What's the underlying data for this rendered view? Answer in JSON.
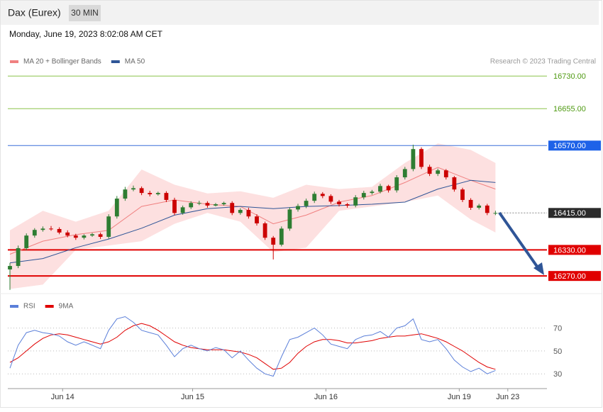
{
  "header": {
    "title": "Dax (Eurex)",
    "interval": "30 MIN",
    "timestamp": "Monday, June 19, 2023 8:02:08 AM CET"
  },
  "chart_data": [
    {
      "type": "candlestick",
      "copyright": "Research © 2023 Trading Central",
      "xlim": [
        -0.26,
        65.26
      ],
      "ylim": [
        16236,
        16750
      ],
      "up_color": "#2e7d32",
      "down_color": "#cc0000",
      "x": [
        0,
        1,
        2,
        3,
        4,
        5,
        6,
        7,
        8,
        9,
        10,
        11,
        12,
        13,
        14,
        15,
        16,
        17,
        18,
        19,
        20,
        21,
        22,
        23,
        24,
        25,
        26,
        27,
        28,
        29,
        30,
        31,
        32,
        33,
        34,
        35,
        36,
        37,
        38,
        39,
        40,
        41,
        42,
        43,
        44,
        45,
        46,
        47,
        48,
        49,
        50,
        51,
        52,
        53,
        54,
        55,
        56,
        57,
        58,
        59
      ],
      "open": [
        16285,
        16293,
        16334,
        16363,
        16376,
        16379,
        16378,
        16370,
        16363,
        16358,
        16363,
        16366,
        16360,
        16407,
        16448,
        16469,
        16472,
        16461,
        16458,
        16461,
        16445,
        16415,
        16428,
        16438,
        16438,
        16432,
        16435,
        16438,
        16415,
        16422,
        16407,
        16391,
        16358,
        16342,
        16379,
        16423,
        16431,
        16443,
        16459,
        16454,
        16441,
        16435,
        16432,
        16451,
        16461,
        16464,
        16477,
        16467,
        16497,
        16516,
        16562,
        16521,
        16505,
        16513,
        16497,
        16469,
        16445,
        16427,
        16432,
        16415
      ],
      "high": [
        16300,
        16340,
        16368,
        16380,
        16384,
        16385,
        16382,
        16375,
        16367,
        16366,
        16369,
        16370,
        16412,
        16454,
        16475,
        16478,
        16476,
        16466,
        16464,
        16465,
        16450,
        16432,
        16442,
        16443,
        16442,
        16438,
        16441,
        16442,
        16426,
        16427,
        16412,
        16395,
        16362,
        16384,
        16428,
        16436,
        16448,
        16464,
        16463,
        16458,
        16445,
        16438,
        16456,
        16466,
        16468,
        16482,
        16480,
        16502,
        16521,
        16572,
        16566,
        16526,
        16517,
        16516,
        16500,
        16473,
        16449,
        16436,
        16436,
        16420
      ],
      "low": [
        16238,
        16288,
        16329,
        16358,
        16372,
        16374,
        16366,
        16359,
        16353,
        16354,
        16360,
        16355,
        16356,
        16402,
        16443,
        16465,
        16456,
        16453,
        16455,
        16440,
        16410,
        16411,
        16424,
        16433,
        16427,
        16430,
        16432,
        16410,
        16411,
        16402,
        16386,
        16353,
        16308,
        16338,
        16374,
        16418,
        16426,
        16438,
        16449,
        16436,
        16430,
        16427,
        16428,
        16446,
        16457,
        16460,
        16462,
        16462,
        16492,
        16511,
        16516,
        16500,
        16500,
        16492,
        16464,
        16440,
        16422,
        16423,
        16410,
        16410
      ],
      "close": [
        16293,
        16334,
        16363,
        16376,
        16379,
        16378,
        16370,
        16363,
        16358,
        16363,
        16366,
        16360,
        16407,
        16448,
        16469,
        16472,
        16461,
        16458,
        16461,
        16445,
        16415,
        16428,
        16438,
        16438,
        16432,
        16435,
        16438,
        16415,
        16422,
        16407,
        16391,
        16358,
        16342,
        16379,
        16423,
        16431,
        16443,
        16459,
        16454,
        16441,
        16435,
        16432,
        16451,
        16461,
        16464,
        16477,
        16467,
        16497,
        16516,
        16562,
        16521,
        16505,
        16513,
        16497,
        16469,
        16445,
        16427,
        16432,
        16415,
        16415
      ],
      "series": [
        {
          "name": "MA 20 + Bollinger Bands",
          "color": "#f08080",
          "band_color": "#fde0e0",
          "x": [
            0,
            4,
            8,
            12,
            16,
            20,
            24,
            28,
            32,
            36,
            40,
            44,
            48,
            52,
            56,
            59
          ],
          "values": [
            16320,
            16350,
            16365,
            16375,
            16430,
            16445,
            16435,
            16430,
            16390,
            16410,
            16440,
            16455,
            16485,
            16520,
            16490,
            16470
          ],
          "upper": [
            16375,
            16420,
            16395,
            16420,
            16515,
            16480,
            16460,
            16465,
            16450,
            16480,
            16470,
            16475,
            16530,
            16575,
            16560,
            16530
          ],
          "lower": [
            16240,
            16250,
            16330,
            16340,
            16350,
            16390,
            16415,
            16395,
            16325,
            16335,
            16420,
            16430,
            16440,
            16455,
            16400,
            16370
          ]
        },
        {
          "name": "MA 50",
          "color": "#2f5597",
          "x": [
            0,
            4,
            8,
            12,
            16,
            20,
            24,
            28,
            32,
            36,
            40,
            44,
            48,
            52,
            56,
            59
          ],
          "values": [
            16300,
            16310,
            16335,
            16355,
            16380,
            16410,
            16425,
            16430,
            16425,
            16430,
            16432,
            16435,
            16440,
            16470,
            16490,
            16485
          ]
        }
      ],
      "levels": [
        {
          "value": 16730,
          "label": "16730.00",
          "color": "#8bc34a",
          "label_color": "#4f9a12",
          "boxed": false,
          "dashed": false
        },
        {
          "value": 16655,
          "label": "16655.00",
          "color": "#8bc34a",
          "label_color": "#4f9a12",
          "boxed": false,
          "dashed": false
        },
        {
          "value": 16570,
          "label": "16570.00",
          "color": "#3a6fd8",
          "label_color": "#1e62e8",
          "boxed": true,
          "dashed": false
        },
        {
          "value": 16415,
          "label": "16415.00",
          "color": "#888888",
          "label_color": "#2b2b2b",
          "boxed": true,
          "dashed": true
        },
        {
          "value": 16330,
          "label": "16330.00",
          "color": "#e00000",
          "label_color": "#e00000",
          "boxed": true,
          "dashed": false
        },
        {
          "value": 16270,
          "label": "16270.00",
          "color": "#e00000",
          "label_color": "#e00000",
          "boxed": true,
          "dashed": false
        }
      ]
    },
    {
      "type": "line",
      "xlim": [
        -0.26,
        65.26
      ],
      "ylim": [
        19,
        84
      ],
      "yticks": [
        30,
        50,
        70
      ],
      "xticks": [
        {
          "value": 6.4,
          "label": "Jun 14"
        },
        {
          "value": 22.2,
          "label": "Jun 15"
        },
        {
          "value": 38.4,
          "label": "Jun 16"
        },
        {
          "value": 54.6,
          "label": "Jun 19"
        },
        {
          "value": 60.5,
          "label": "Jun 23"
        }
      ],
      "x": [
        0,
        1,
        2,
        3,
        4,
        5,
        6,
        7,
        8,
        9,
        10,
        11,
        12,
        13,
        14,
        15,
        16,
        17,
        18,
        19,
        20,
        21,
        22,
        23,
        24,
        25,
        26,
        27,
        28,
        29,
        30,
        31,
        32,
        33,
        34,
        35,
        36,
        37,
        38,
        39,
        40,
        41,
        42,
        43,
        44,
        45,
        46,
        47,
        48,
        49,
        50,
        51,
        52,
        53,
        54,
        55,
        56,
        57,
        58,
        59
      ],
      "series": [
        {
          "name": "RSI",
          "color": "#5b7fd9",
          "values": [
            35,
            55,
            66,
            68,
            66,
            65,
            63,
            58,
            55,
            58,
            55,
            52,
            68,
            78,
            80,
            75,
            68,
            66,
            64,
            55,
            45,
            52,
            55,
            52,
            50,
            53,
            51,
            44,
            50,
            42,
            35,
            30,
            28,
            45,
            60,
            62,
            66,
            70,
            64,
            56,
            54,
            52,
            60,
            63,
            64,
            67,
            62,
            70,
            72,
            78,
            60,
            58,
            60,
            52,
            42,
            36,
            32,
            35,
            30,
            33
          ]
        },
        {
          "name": "9MA",
          "color": "#e00000",
          "values": [
            40,
            44,
            50,
            56,
            61,
            64,
            65,
            64,
            62,
            60,
            58,
            56,
            58,
            62,
            68,
            72,
            74,
            72,
            68,
            63,
            58,
            55,
            53,
            52,
            51,
            51,
            51,
            50,
            49,
            47,
            44,
            39,
            34,
            35,
            40,
            48,
            54,
            58,
            60,
            60,
            59,
            57,
            57,
            58,
            59,
            61,
            62,
            63,
            63,
            64,
            65,
            63,
            61,
            58,
            54,
            50,
            45,
            40,
            36,
            34
          ]
        }
      ]
    }
  ]
}
